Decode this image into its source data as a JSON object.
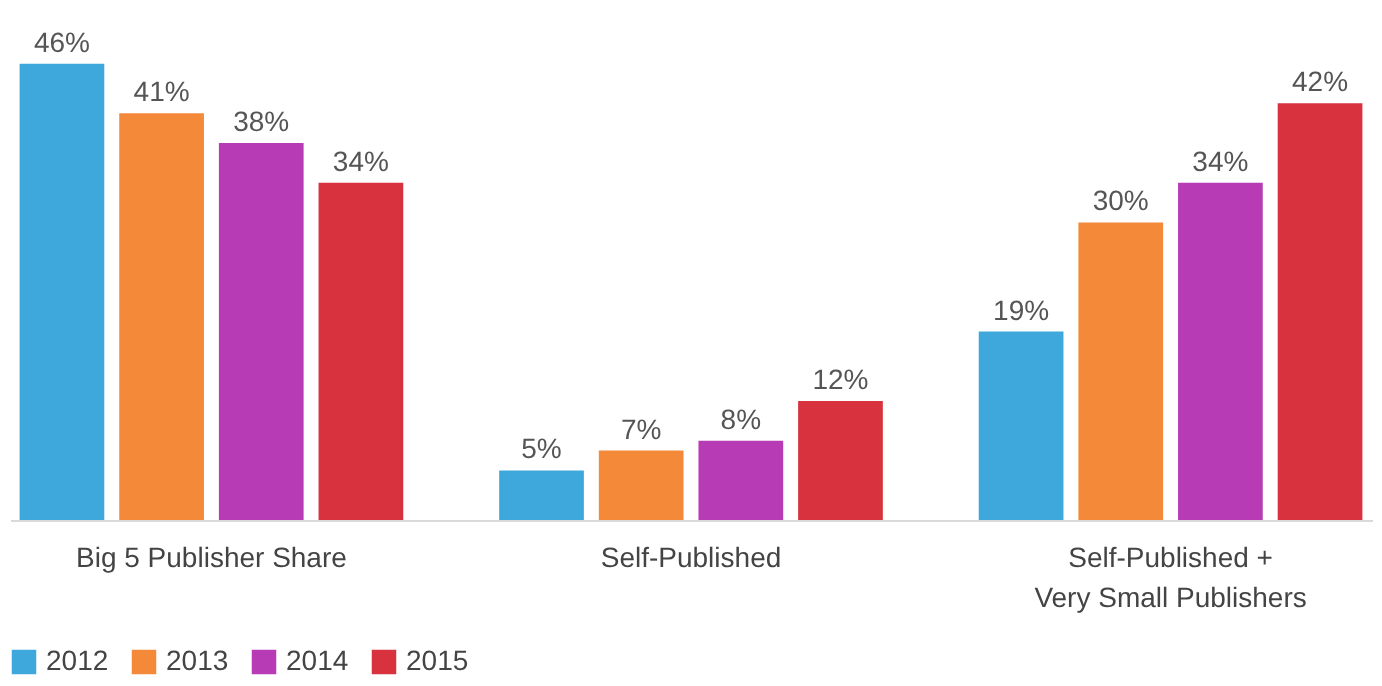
{
  "chart_data": {
    "type": "bar",
    "categories": [
      "Big 5 Publisher Share",
      "Self-Published",
      "Self-Published +\nVery Small Publishers"
    ],
    "series": [
      {
        "name": "2012",
        "color": "#3ea8dc",
        "values": [
          46,
          5,
          19
        ],
        "value_labels": [
          "46%",
          "5%",
          "19%"
        ]
      },
      {
        "name": "2013",
        "color": "#f4893a",
        "values": [
          41,
          7,
          30
        ],
        "value_labels": [
          "41%",
          "7%",
          "30%"
        ]
      },
      {
        "name": "2014",
        "color": "#b63bb4",
        "values": [
          38,
          8,
          34
        ],
        "value_labels": [
          "38%",
          "8%",
          "34%"
        ]
      },
      {
        "name": "2015",
        "color": "#d7323d",
        "values": [
          34,
          12,
          42
        ],
        "value_labels": [
          "34%",
          "12%",
          "42%"
        ]
      }
    ],
    "legend": "bottom",
    "tick_labels": "x"
  }
}
